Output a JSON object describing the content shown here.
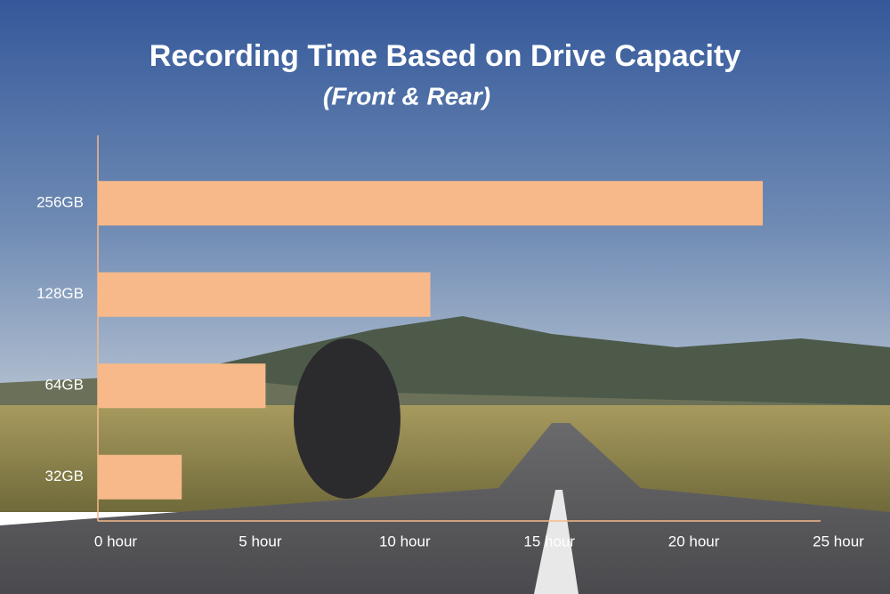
{
  "chart_data": {
    "type": "barh",
    "title": "Recording Time Based on Drive Capacity",
    "subtitle": "(Front & Rear)",
    "categories": [
      "256GB",
      "128GB",
      "64GB",
      "32GB"
    ],
    "values": [
      23,
      11.5,
      5.8,
      2.9
    ],
    "color": "#f7b98a",
    "xlim": [
      0,
      25
    ],
    "xticks": [
      {
        "value": 0,
        "label": "0 hour"
      },
      {
        "value": 5,
        "label": "5 hour"
      },
      {
        "value": 10,
        "label": "10 hour"
      },
      {
        "value": 15,
        "label": "15 hour"
      },
      {
        "value": 20,
        "label": "20 hour"
      },
      {
        "value": 25,
        "label": "25 hour"
      }
    ],
    "grid": false
  }
}
